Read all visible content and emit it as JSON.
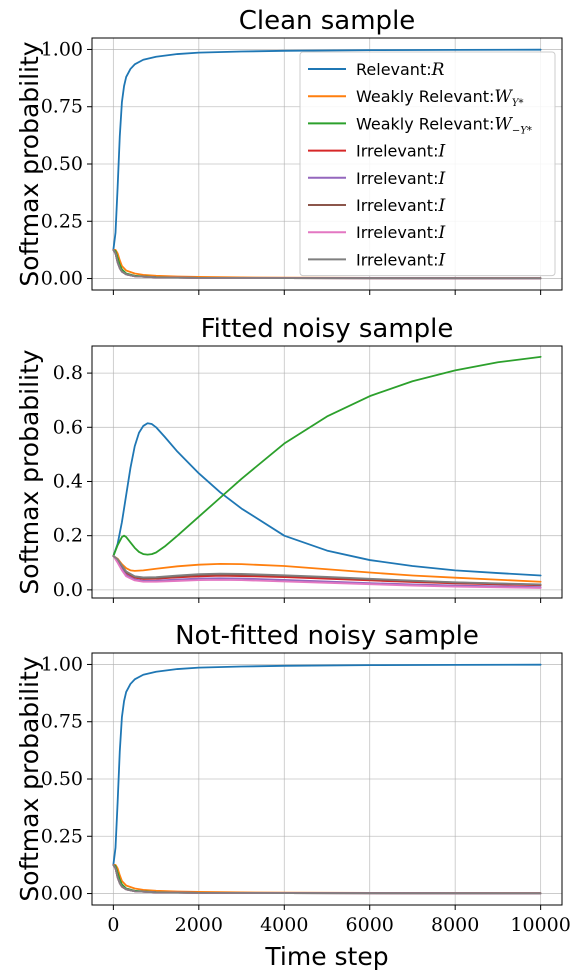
{
  "colors": {
    "relevant": "#1f77b4",
    "weakly_pos": "#ff7f0e",
    "weakly_neg": "#2ca02c",
    "irr1": "#d62728",
    "irr2": "#9467bd",
    "irr3": "#8c564b",
    "irr4": "#e377c2",
    "irr5": "#7f7f7f"
  },
  "legend": {
    "placement": "top-right",
    "entries": [
      {
        "prefix": "Relevant:",
        "sym": "R",
        "sub": ""
      },
      {
        "prefix": "Weakly Relevant:",
        "sym": "W",
        "sub": "Y*"
      },
      {
        "prefix": "Weakly Relevant:",
        "sym": "W",
        "sub": "−Y*"
      },
      {
        "prefix": "Irrelevant:",
        "sym": "I",
        "sub": ""
      },
      {
        "prefix": "Irrelevant:",
        "sym": "I",
        "sub": ""
      },
      {
        "prefix": "Irrelevant:",
        "sym": "I",
        "sub": ""
      },
      {
        "prefix": "Irrelevant:",
        "sym": "I",
        "sub": ""
      },
      {
        "prefix": "Irrelevant:",
        "sym": "I",
        "sub": ""
      }
    ]
  },
  "chart_data": [
    {
      "type": "line",
      "title": "Clean sample",
      "ylabel": "Softmax probability",
      "xlabel": "",
      "xlim": [
        -500,
        10500
      ],
      "ylim": [
        -0.05,
        1.05
      ],
      "xticks": [
        0,
        2000,
        4000,
        6000,
        8000,
        10000
      ],
      "yticks": [
        0.0,
        0.25,
        0.5,
        0.75,
        1.0
      ],
      "ytick_labels": [
        "0.00",
        "0.25",
        "0.50",
        "0.75",
        "1.00"
      ],
      "show_xtick_labels": false,
      "grid": true,
      "legend": true,
      "series": [
        {
          "name": "Relevant",
          "color_key": "relevant",
          "x": [
            0,
            50,
            100,
            150,
            200,
            250,
            300,
            400,
            500,
            700,
            1000,
            1500,
            2000,
            3000,
            4000,
            6000,
            8000,
            10000
          ],
          "y": [
            0.125,
            0.2,
            0.4,
            0.62,
            0.77,
            0.84,
            0.88,
            0.915,
            0.935,
            0.955,
            0.968,
            0.98,
            0.986,
            0.991,
            0.994,
            0.997,
            0.998,
            0.999
          ]
        },
        {
          "name": "Weakly Relevant Y*",
          "color_key": "weakly_pos",
          "x": [
            0,
            50,
            100,
            150,
            200,
            300,
            500,
            700,
            1000,
            1500,
            2000,
            3000,
            4000,
            6000,
            8000,
            10000
          ],
          "y": [
            0.125,
            0.125,
            0.11,
            0.08,
            0.055,
            0.035,
            0.022,
            0.016,
            0.012,
            0.009,
            0.007,
            0.005,
            0.004,
            0.003,
            0.002,
            0.002
          ]
        },
        {
          "name": "Weakly Relevant -Y*",
          "color_key": "weakly_neg",
          "x": [
            0,
            50,
            100,
            150,
            200,
            300,
            500,
            1000,
            2000,
            4000,
            10000
          ],
          "y": [
            0.125,
            0.12,
            0.09,
            0.06,
            0.04,
            0.022,
            0.012,
            0.006,
            0.003,
            0.002,
            0.001
          ]
        },
        {
          "name": "Irrelevant 1",
          "color_key": "irr1",
          "x": [
            0,
            50,
            100,
            150,
            200,
            300,
            500,
            1000,
            2000,
            4000,
            10000
          ],
          "y": [
            0.125,
            0.11,
            0.07,
            0.045,
            0.03,
            0.018,
            0.01,
            0.005,
            0.003,
            0.002,
            0.001
          ]
        },
        {
          "name": "Irrelevant 2",
          "color_key": "irr2",
          "x": [
            0,
            50,
            100,
            150,
            200,
            300,
            500,
            1000,
            2000,
            4000,
            10000
          ],
          "y": [
            0.125,
            0.11,
            0.07,
            0.045,
            0.03,
            0.018,
            0.01,
            0.005,
            0.003,
            0.002,
            0.001
          ]
        },
        {
          "name": "Irrelevant 3",
          "color_key": "irr3",
          "x": [
            0,
            50,
            100,
            150,
            200,
            300,
            500,
            1000,
            2000,
            4000,
            10000
          ],
          "y": [
            0.125,
            0.11,
            0.07,
            0.045,
            0.03,
            0.018,
            0.01,
            0.005,
            0.003,
            0.002,
            0.001
          ]
        },
        {
          "name": "Irrelevant 4",
          "color_key": "irr4",
          "x": [
            0,
            50,
            100,
            150,
            200,
            300,
            500,
            1000,
            2000,
            4000,
            10000
          ],
          "y": [
            0.125,
            0.11,
            0.07,
            0.045,
            0.03,
            0.018,
            0.01,
            0.005,
            0.003,
            0.002,
            0.001
          ]
        },
        {
          "name": "Irrelevant 5",
          "color_key": "irr5",
          "x": [
            0,
            50,
            100,
            150,
            200,
            300,
            500,
            1000,
            2000,
            4000,
            10000
          ],
          "y": [
            0.125,
            0.11,
            0.07,
            0.045,
            0.03,
            0.018,
            0.01,
            0.005,
            0.003,
            0.002,
            0.001
          ]
        }
      ]
    },
    {
      "type": "line",
      "title": "Fitted noisy sample",
      "ylabel": "Softmax probability",
      "xlabel": "",
      "xlim": [
        -500,
        10500
      ],
      "ylim": [
        -0.03,
        0.9
      ],
      "xticks": [
        0,
        2000,
        4000,
        6000,
        8000,
        10000
      ],
      "yticks": [
        0.0,
        0.2,
        0.4,
        0.6,
        0.8
      ],
      "ytick_labels": [
        "0.0",
        "0.2",
        "0.4",
        "0.6",
        "0.8"
      ],
      "show_xtick_labels": false,
      "grid": true,
      "legend": false,
      "series": [
        {
          "name": "Relevant",
          "color_key": "relevant",
          "x": [
            0,
            100,
            200,
            300,
            400,
            500,
            600,
            700,
            800,
            900,
            1000,
            1200,
            1500,
            2000,
            2500,
            3000,
            4000,
            5000,
            6000,
            7000,
            8000,
            9000,
            10000
          ],
          "y": [
            0.125,
            0.17,
            0.25,
            0.35,
            0.45,
            0.53,
            0.58,
            0.605,
            0.615,
            0.612,
            0.6,
            0.565,
            0.51,
            0.43,
            0.36,
            0.3,
            0.2,
            0.145,
            0.11,
            0.088,
            0.072,
            0.062,
            0.053
          ]
        },
        {
          "name": "Weakly Relevant Y*",
          "color_key": "weakly_pos",
          "x": [
            0,
            100,
            200,
            300,
            400,
            500,
            700,
            1000,
            1500,
            2000,
            2500,
            3000,
            4000,
            5000,
            6000,
            7000,
            8000,
            10000
          ],
          "y": [
            0.125,
            0.115,
            0.095,
            0.08,
            0.072,
            0.07,
            0.072,
            0.078,
            0.087,
            0.093,
            0.096,
            0.095,
            0.088,
            0.076,
            0.064,
            0.053,
            0.045,
            0.03
          ]
        },
        {
          "name": "Weakly Relevant -Y*",
          "color_key": "weakly_neg",
          "x": [
            0,
            100,
            200,
            250,
            300,
            400,
            500,
            600,
            700,
            800,
            900,
            1000,
            1200,
            1500,
            2000,
            2500,
            3000,
            4000,
            5000,
            6000,
            7000,
            8000,
            9000,
            10000
          ],
          "y": [
            0.125,
            0.165,
            0.195,
            0.2,
            0.195,
            0.175,
            0.155,
            0.14,
            0.132,
            0.13,
            0.132,
            0.138,
            0.16,
            0.2,
            0.27,
            0.34,
            0.41,
            0.54,
            0.64,
            0.715,
            0.77,
            0.81,
            0.84,
            0.86
          ]
        },
        {
          "name": "Irrelevant 1",
          "color_key": "irr1",
          "x": [
            0,
            100,
            200,
            300,
            500,
            700,
            1000,
            1500,
            2000,
            2500,
            3000,
            4000,
            5000,
            6000,
            7000,
            8000,
            10000
          ],
          "y": [
            0.125,
            0.11,
            0.085,
            0.062,
            0.045,
            0.04,
            0.041,
            0.046,
            0.05,
            0.052,
            0.051,
            0.047,
            0.041,
            0.035,
            0.029,
            0.024,
            0.017
          ]
        },
        {
          "name": "Irrelevant 2",
          "color_key": "irr2",
          "x": [
            0,
            100,
            200,
            300,
            500,
            700,
            1000,
            1500,
            2000,
            2500,
            3000,
            4000,
            5000,
            6000,
            7000,
            8000,
            10000
          ],
          "y": [
            0.125,
            0.105,
            0.078,
            0.055,
            0.038,
            0.033,
            0.034,
            0.038,
            0.042,
            0.043,
            0.042,
            0.037,
            0.031,
            0.025,
            0.02,
            0.016,
            0.01
          ]
        },
        {
          "name": "Irrelevant 3",
          "color_key": "irr3",
          "x": [
            0,
            100,
            200,
            300,
            500,
            700,
            1000,
            1500,
            2000,
            2500,
            3000,
            4000,
            5000,
            6000,
            7000,
            8000,
            10000
          ],
          "y": [
            0.125,
            0.112,
            0.088,
            0.065,
            0.048,
            0.043,
            0.044,
            0.05,
            0.055,
            0.057,
            0.056,
            0.052,
            0.046,
            0.039,
            0.033,
            0.027,
            0.019
          ]
        },
        {
          "name": "Irrelevant 4",
          "color_key": "irr4",
          "x": [
            0,
            100,
            200,
            300,
            500,
            700,
            1000,
            1500,
            2000,
            2500,
            3000,
            4000,
            5000,
            6000,
            7000,
            8000,
            10000
          ],
          "y": [
            0.125,
            0.1,
            0.072,
            0.05,
            0.035,
            0.03,
            0.03,
            0.033,
            0.036,
            0.037,
            0.036,
            0.031,
            0.026,
            0.021,
            0.016,
            0.012,
            0.007
          ]
        },
        {
          "name": "Irrelevant 5",
          "color_key": "irr5",
          "x": [
            0,
            100,
            200,
            300,
            500,
            700,
            1000,
            1500,
            2000,
            2500,
            3000,
            4000,
            5000,
            6000,
            7000,
            8000,
            10000
          ],
          "y": [
            0.125,
            0.113,
            0.09,
            0.068,
            0.05,
            0.046,
            0.047,
            0.053,
            0.058,
            0.06,
            0.059,
            0.054,
            0.048,
            0.041,
            0.034,
            0.028,
            0.02
          ]
        }
      ]
    },
    {
      "type": "line",
      "title": "Not-fitted noisy sample",
      "ylabel": "Softmax probability",
      "xlabel": "Time step",
      "xlim": [
        -500,
        10500
      ],
      "ylim": [
        -0.05,
        1.05
      ],
      "xticks": [
        0,
        2000,
        4000,
        6000,
        8000,
        10000
      ],
      "yticks": [
        0.0,
        0.25,
        0.5,
        0.75,
        1.0
      ],
      "ytick_labels": [
        "0.00",
        "0.25",
        "0.50",
        "0.75",
        "1.00"
      ],
      "xtick_labels": [
        "0",
        "2000",
        "4000",
        "6000",
        "8000",
        "10000"
      ],
      "show_xtick_labels": true,
      "grid": true,
      "legend": false,
      "series": [
        {
          "name": "Relevant",
          "color_key": "relevant",
          "x": [
            0,
            50,
            100,
            150,
            200,
            250,
            300,
            400,
            500,
            700,
            1000,
            1500,
            2000,
            3000,
            4000,
            6000,
            8000,
            10000
          ],
          "y": [
            0.125,
            0.2,
            0.4,
            0.62,
            0.77,
            0.84,
            0.88,
            0.915,
            0.935,
            0.955,
            0.968,
            0.98,
            0.986,
            0.991,
            0.994,
            0.997,
            0.998,
            0.999
          ]
        },
        {
          "name": "Weakly Relevant Y*",
          "color_key": "weakly_pos",
          "x": [
            0,
            50,
            100,
            150,
            200,
            300,
            500,
            700,
            1000,
            1500,
            2000,
            3000,
            4000,
            6000,
            8000,
            10000
          ],
          "y": [
            0.125,
            0.125,
            0.11,
            0.08,
            0.055,
            0.035,
            0.022,
            0.016,
            0.012,
            0.009,
            0.007,
            0.005,
            0.004,
            0.003,
            0.002,
            0.002
          ]
        },
        {
          "name": "Weakly Relevant -Y*",
          "color_key": "weakly_neg",
          "x": [
            0,
            50,
            100,
            150,
            200,
            300,
            500,
            1000,
            2000,
            4000,
            10000
          ],
          "y": [
            0.125,
            0.12,
            0.09,
            0.06,
            0.04,
            0.022,
            0.012,
            0.006,
            0.003,
            0.002,
            0.001
          ]
        },
        {
          "name": "Irrelevant 1",
          "color_key": "irr1",
          "x": [
            0,
            50,
            100,
            150,
            200,
            300,
            500,
            1000,
            2000,
            4000,
            10000
          ],
          "y": [
            0.125,
            0.11,
            0.07,
            0.045,
            0.03,
            0.018,
            0.01,
            0.005,
            0.003,
            0.002,
            0.001
          ]
        },
        {
          "name": "Irrelevant 2",
          "color_key": "irr2",
          "x": [
            0,
            50,
            100,
            150,
            200,
            300,
            500,
            1000,
            2000,
            4000,
            10000
          ],
          "y": [
            0.125,
            0.11,
            0.07,
            0.045,
            0.03,
            0.018,
            0.01,
            0.005,
            0.003,
            0.002,
            0.001
          ]
        },
        {
          "name": "Irrelevant 3",
          "color_key": "irr3",
          "x": [
            0,
            50,
            100,
            150,
            200,
            300,
            500,
            1000,
            2000,
            4000,
            10000
          ],
          "y": [
            0.125,
            0.11,
            0.07,
            0.045,
            0.03,
            0.018,
            0.01,
            0.005,
            0.003,
            0.002,
            0.001
          ]
        },
        {
          "name": "Irrelevant 4",
          "color_key": "irr4",
          "x": [
            0,
            50,
            100,
            150,
            200,
            300,
            500,
            1000,
            2000,
            4000,
            10000
          ],
          "y": [
            0.125,
            0.11,
            0.07,
            0.045,
            0.03,
            0.018,
            0.01,
            0.005,
            0.003,
            0.002,
            0.001
          ]
        },
        {
          "name": "Irrelevant 5",
          "color_key": "irr5",
          "x": [
            0,
            50,
            100,
            150,
            200,
            300,
            500,
            1000,
            2000,
            4000,
            10000
          ],
          "y": [
            0.125,
            0.11,
            0.07,
            0.045,
            0.03,
            0.018,
            0.01,
            0.005,
            0.003,
            0.002,
            0.001
          ]
        }
      ]
    }
  ]
}
